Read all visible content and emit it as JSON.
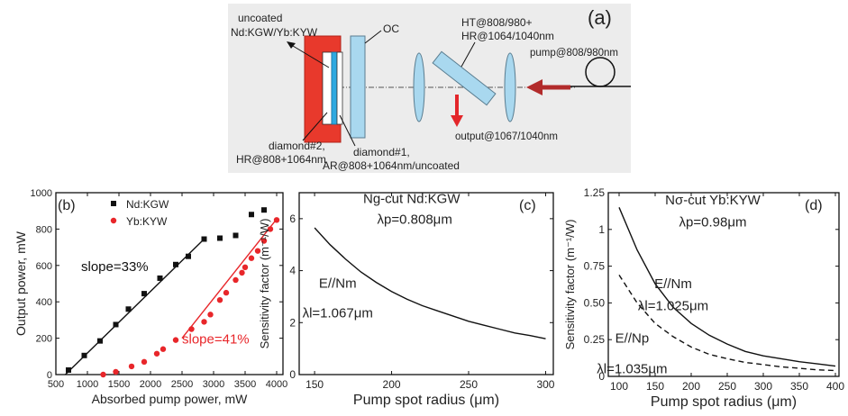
{
  "panel_a": {
    "label": "(a)",
    "crystal_label_1": "uncoated",
    "crystal_label_2": "Nd:KGW/Yb:KYW",
    "oc_label": "OC",
    "mirror_label_1": "HT@808/980+",
    "mirror_label_2": "HR@1064/1040nm",
    "pump_label": "pump@808/980nm",
    "output_label": "output@1067/1040nm",
    "diamond2_label_1": "diamond#2,",
    "diamond2_label_2": "HR@808+1064nm",
    "diamond1_label_1": "diamond#1,",
    "diamond1_label_2": "AR@808+1064nm/uncoated",
    "colors": {
      "heatsink": "#e8392c",
      "crystal": "#2fa9e0",
      "optics": "#a9d8ef",
      "arrow": "#c0282a",
      "background": "#ececec"
    }
  },
  "chart_data": [
    {
      "id": "b",
      "type": "scatter",
      "panel_label": "(b)",
      "xlabel": "Absorbed pump power, mW",
      "ylabel": "Output power, mW",
      "xlim": [
        500,
        4100
      ],
      "ylim": [
        0,
        1000
      ],
      "xticks": [
        500,
        1000,
        1500,
        2000,
        2500,
        3000,
        3500,
        4000
      ],
      "yticks": [
        0,
        200,
        400,
        600,
        800,
        1000
      ],
      "legend": [
        {
          "name": "Nd:KGW",
          "color": "#111111",
          "marker": "square"
        },
        {
          "name": "Yb:KYW",
          "color": "#e8262a",
          "marker": "circle"
        }
      ],
      "series": [
        {
          "name": "Nd:KGW",
          "color": "#111111",
          "marker": "square",
          "points": [
            [
              700,
              25
            ],
            [
              950,
              105
            ],
            [
              1200,
              185
            ],
            [
              1450,
              275
            ],
            [
              1650,
              360
            ],
            [
              1900,
              445
            ],
            [
              2150,
              530
            ],
            [
              2400,
              605
            ],
            [
              2600,
              650
            ],
            [
              2850,
              745
            ],
            [
              3100,
              750
            ],
            [
              3350,
              765
            ],
            [
              3600,
              880
            ],
            [
              3800,
              905
            ]
          ],
          "fit": [
            [
              650,
              0
            ],
            [
              2850,
              745
            ]
          ]
        },
        {
          "name": "Yb:KYW",
          "color": "#e8262a",
          "marker": "circle",
          "points": [
            [
              1250,
              0
            ],
            [
              1450,
              15
            ],
            [
              1700,
              45
            ],
            [
              1900,
              70
            ],
            [
              2100,
              115
            ],
            [
              2200,
              140
            ],
            [
              2400,
              190
            ],
            [
              2650,
              250
            ],
            [
              2850,
              290
            ],
            [
              2950,
              330
            ],
            [
              3100,
              410
            ],
            [
              3200,
              450
            ],
            [
              3350,
              520
            ],
            [
              3450,
              560
            ],
            [
              3500,
              590
            ],
            [
              3600,
              640
            ],
            [
              3700,
              680
            ],
            [
              3800,
              735
            ],
            [
              3900,
              800
            ],
            [
              4000,
              850
            ]
          ],
          "fit": [
            [
              2500,
              200
            ],
            [
              4000,
              855
            ]
          ]
        }
      ],
      "annotations": [
        {
          "text": "slope=33%",
          "x": 900,
          "y": 570,
          "color": "#111111"
        },
        {
          "text": "slope=41%",
          "x": 2500,
          "y": 170,
          "color": "#e8262a"
        }
      ]
    },
    {
      "id": "c",
      "type": "line",
      "panel_label": "(c)",
      "xlabel": "Pump spot radius (μm)",
      "ylabel": "Sensitivity factor (m⁻¹/W)",
      "xlim": [
        140,
        305
      ],
      "ylim": [
        0,
        7
      ],
      "xticks": [
        150,
        200,
        250,
        300
      ],
      "yticks": [
        0,
        2,
        4,
        6
      ],
      "annotations": [
        {
          "text": "Ng-cut Nd:KGW",
          "x": 213,
          "y": 6.6
        },
        {
          "text": "λp=0.808μm",
          "x": 215,
          "y": 5.8
        },
        {
          "text": "E//Nm",
          "x": 165,
          "y": 3.35
        },
        {
          "text": "λl=1.067μm",
          "x": 165,
          "y": 2.2
        }
      ],
      "series": [
        {
          "name": "",
          "style": "solid",
          "color": "#111111",
          "x": [
            150,
            160,
            170,
            180,
            190,
            200,
            210,
            220,
            230,
            240,
            250,
            260,
            270,
            280,
            290,
            300
          ],
          "y": [
            5.65,
            5.0,
            4.45,
            3.95,
            3.55,
            3.2,
            2.9,
            2.65,
            2.45,
            2.25,
            2.05,
            1.9,
            1.75,
            1.6,
            1.5,
            1.38
          ]
        }
      ]
    },
    {
      "id": "d",
      "type": "line",
      "panel_label": "(d)",
      "xlabel": "Pump spot radius (μm)",
      "ylabel": "Sensitivity factor (m⁻¹/W)",
      "xlim": [
        85,
        405
      ],
      "ylim": [
        0,
        1.25
      ],
      "xticks": [
        100,
        150,
        200,
        250,
        300,
        350,
        400
      ],
      "yticks": [
        0.0,
        0.25,
        0.5,
        0.75,
        1.0,
        1.25
      ],
      "annotations": [
        {
          "text": "Nσ-cut Yb:KYW",
          "x": 230,
          "y": 1.17
        },
        {
          "text": "λp=0.98μm",
          "x": 230,
          "y": 1.02
        },
        {
          "text": "E//Nm",
          "x": 175,
          "y": 0.6
        },
        {
          "text": "λl=1.025μm",
          "x": 175,
          "y": 0.45
        },
        {
          "text": "E//Np",
          "x": 118,
          "y": 0.23
        },
        {
          "text": "λl=1.035μm",
          "x": 118,
          "y": 0.02
        }
      ],
      "series": [
        {
          "name": "E//Nm",
          "style": "solid",
          "color": "#111111",
          "x": [
            100,
            125,
            150,
            175,
            200,
            225,
            250,
            275,
            300,
            325,
            350,
            375,
            400
          ],
          "y": [
            1.15,
            0.86,
            0.63,
            0.47,
            0.36,
            0.28,
            0.22,
            0.17,
            0.14,
            0.12,
            0.1,
            0.085,
            0.07
          ]
        },
        {
          "name": "E//Np",
          "style": "dashed",
          "color": "#111111",
          "x": [
            100,
            125,
            150,
            175,
            200,
            225,
            250,
            275,
            300,
            325,
            350,
            375,
            400
          ],
          "y": [
            0.69,
            0.5,
            0.36,
            0.27,
            0.2,
            0.15,
            0.12,
            0.095,
            0.08,
            0.065,
            0.055,
            0.045,
            0.04
          ]
        }
      ]
    }
  ]
}
